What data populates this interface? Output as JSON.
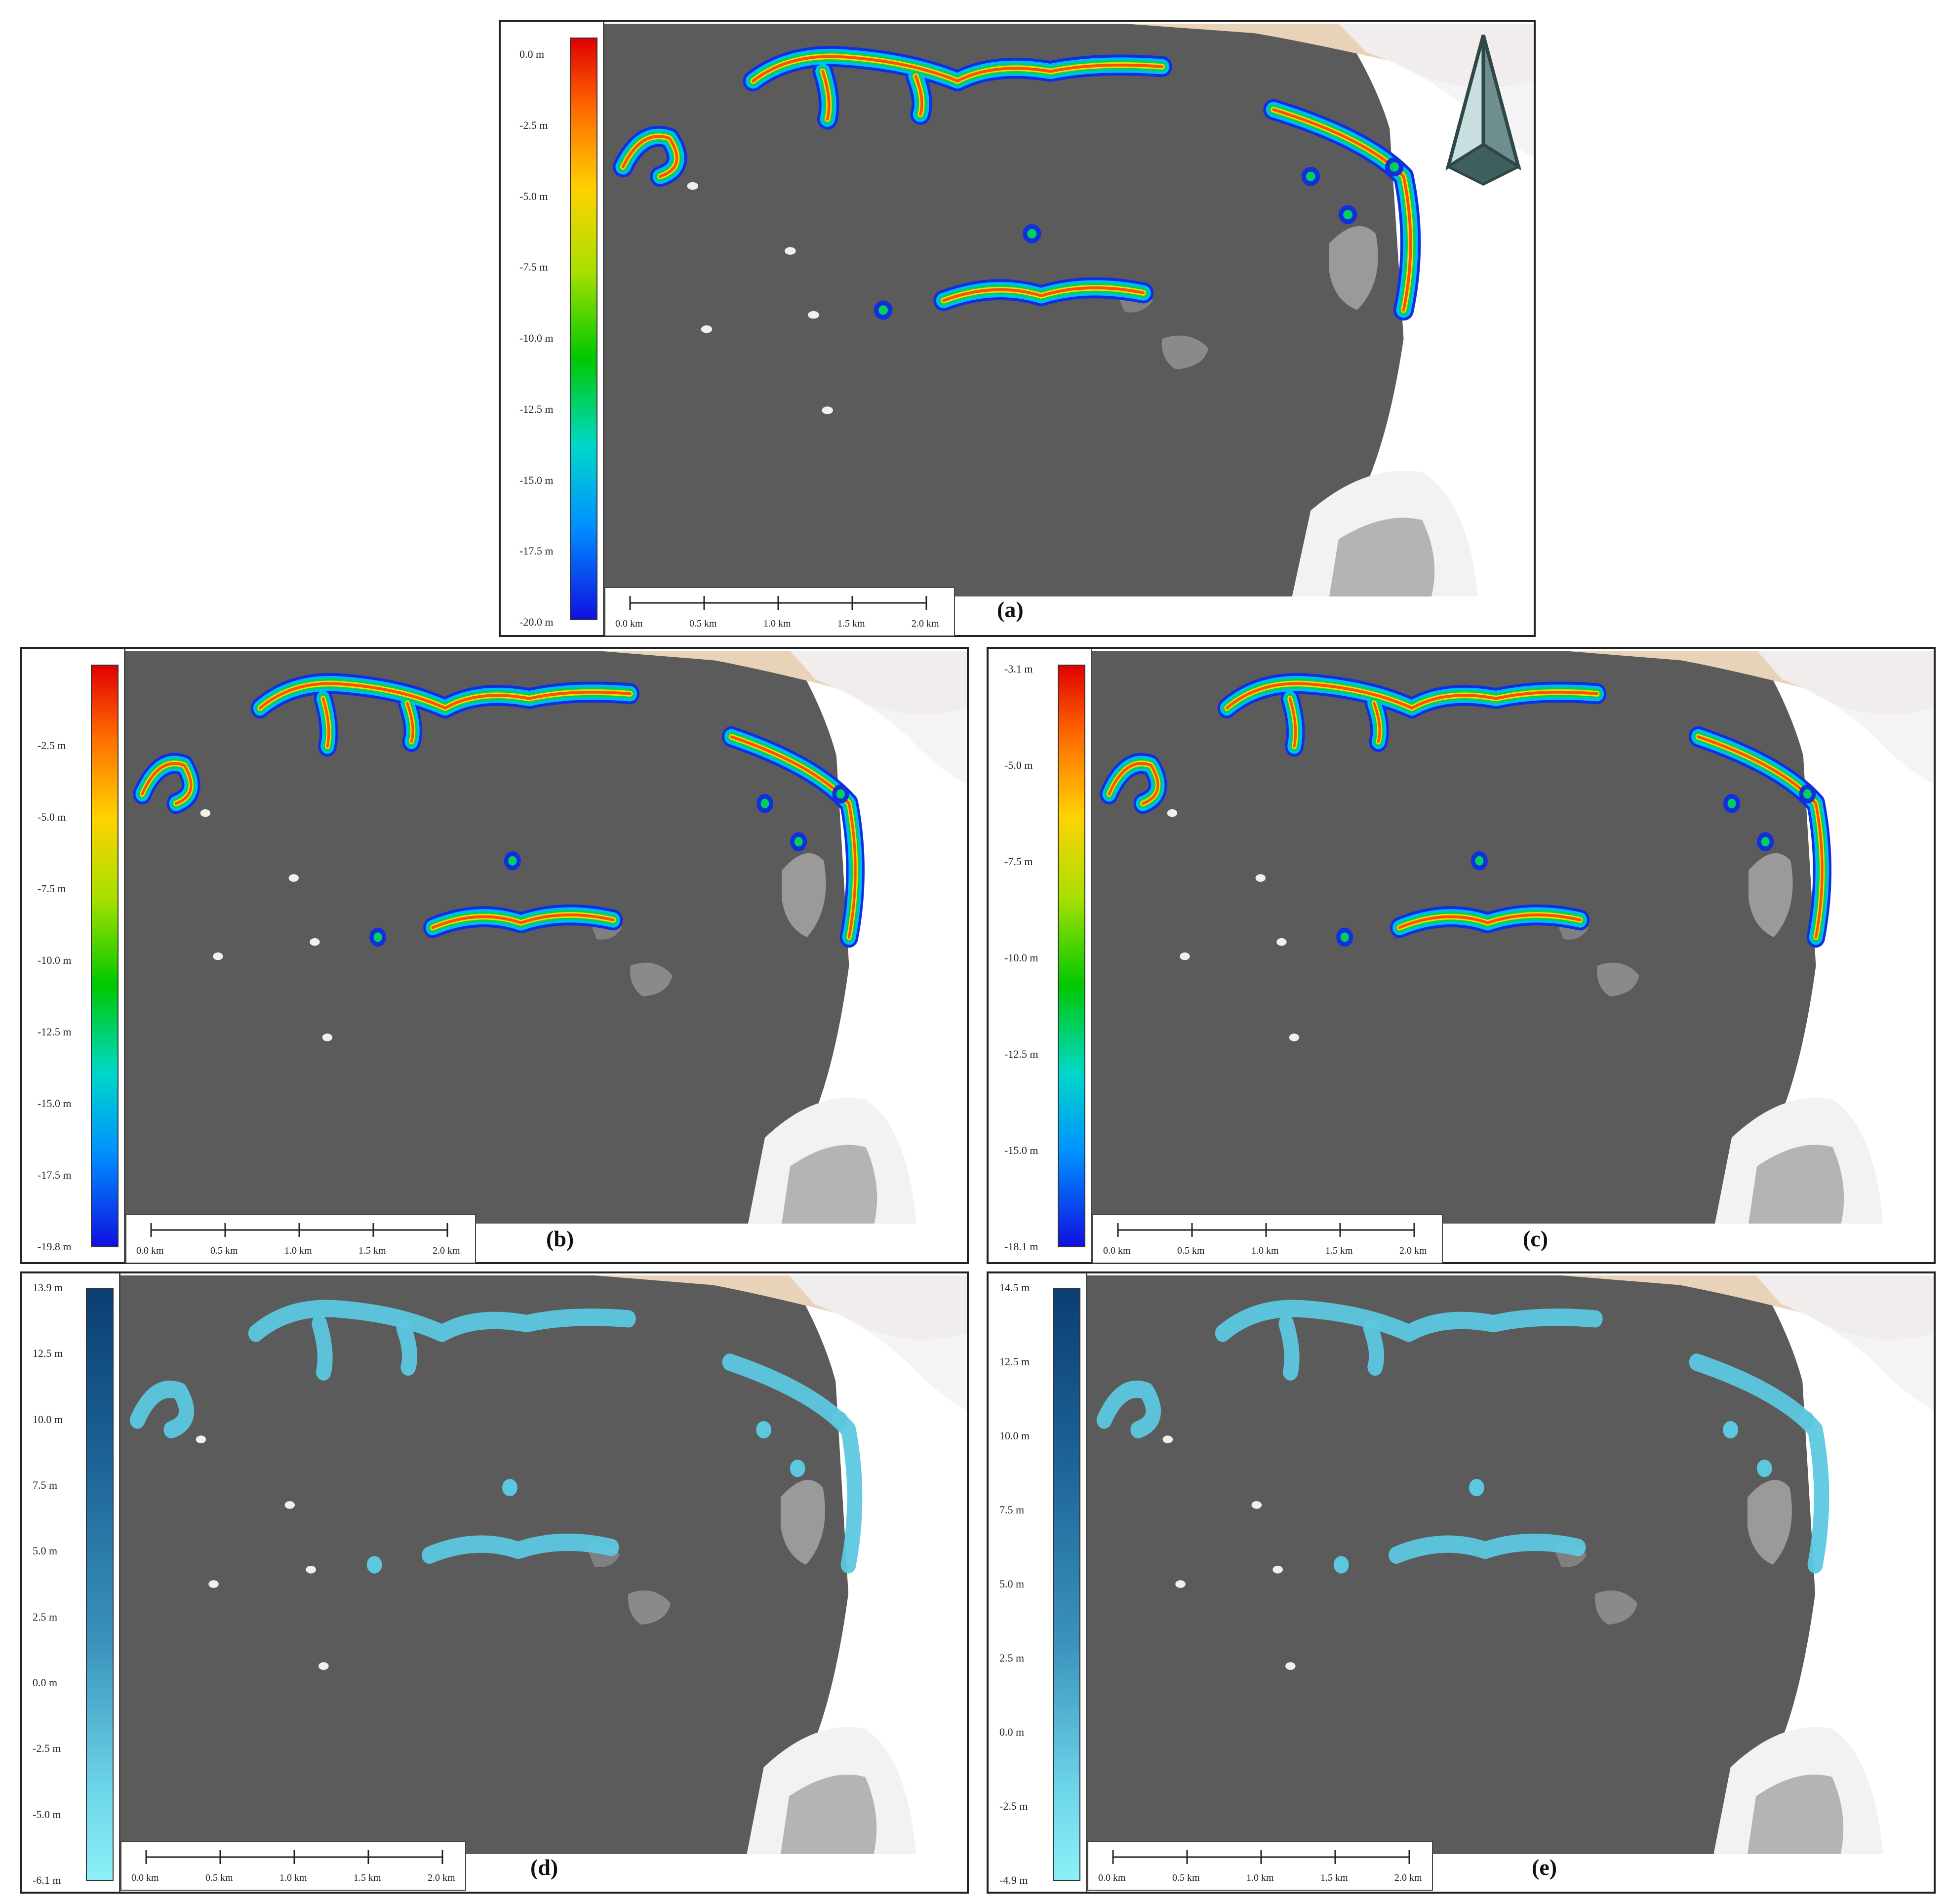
{
  "panels": [
    {
      "label": "(a)",
      "legend": {
        "ramp": "rainbow",
        "ticks": [
          "0.0 m",
          "-2.5 m",
          "-5.0 m",
          "-7.5 m",
          "-10.0 m",
          "-12.5 m",
          "-15.0 m",
          "-17.5 m",
          "-20.0 m"
        ]
      },
      "scalebar": [
        "0.0 km",
        "0.5 km",
        "1.0 km",
        "1.5 km",
        "2.0 km"
      ],
      "north_arrow": true
    },
    {
      "label": "(b)",
      "legend": {
        "ramp": "rainbow",
        "ticks": [
          "-2.5 m",
          "-5.0 m",
          "-7.5 m",
          "-10.0 m",
          "-12.5 m",
          "-15.0 m",
          "-17.5 m",
          "-19.8 m"
        ]
      },
      "scalebar": [
        "0.0 km",
        "0.5 km",
        "1.0 km",
        "1.5 km",
        "2.0 km"
      ],
      "north_arrow": false
    },
    {
      "label": "(c)",
      "legend": {
        "ramp": "rainbow",
        "ticks": [
          "-3.1 m",
          "-5.0 m",
          "-7.5 m",
          "-10.0 m",
          "-12.5 m",
          "-15.0 m",
          "-18.1 m"
        ]
      },
      "scalebar": [
        "0.0 km",
        "0.5 km",
        "1.0 km",
        "1.5 km",
        "2.0 km"
      ],
      "north_arrow": false
    },
    {
      "label": "(d)",
      "legend": {
        "ramp": "blue",
        "ticks": [
          "13.9 m",
          "12.5 m",
          "10.0 m",
          "7.5 m",
          "5.0 m",
          "2.5 m",
          "0.0 m",
          "-2.5 m",
          "-5.0 m",
          "-6.1 m"
        ]
      },
      "scalebar": [
        "0.0 km",
        "0.5 km",
        "1.0 km",
        "1.5 km",
        "2.0 km"
      ],
      "north_arrow": false
    },
    {
      "label": "(e)",
      "legend": {
        "ramp": "blue",
        "ticks": [
          "14.5 m",
          "12.5 m",
          "10.0 m",
          "7.5 m",
          "5.0 m",
          "2.5 m",
          "0.0 m",
          "-2.5 m",
          "-4.9 m"
        ]
      },
      "scalebar": [
        "0.0 km",
        "0.5 km",
        "1.0 km",
        "1.5 km",
        "2.0 km"
      ],
      "north_arrow": false
    }
  ],
  "colors": {
    "water": "#5b5b5b",
    "land_sand": "#e8d2b8",
    "land_snow": "#f2f2f4",
    "rock": "#9a9a9a",
    "frame": "#222222",
    "north_arrow_fill": "#6f8f8f",
    "depth_overlay_blue": "#5cc8e0"
  }
}
